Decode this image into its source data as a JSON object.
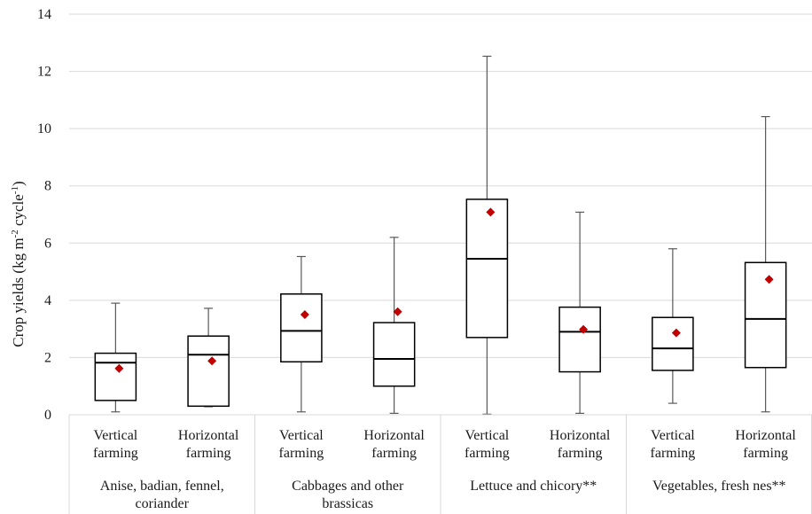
{
  "chart_data": {
    "type": "box",
    "ylabel": {
      "base": "Crop yields (kg m",
      "sup1": "-2",
      "mid": " cycle",
      "sup2": "-1",
      "end": ")"
    },
    "ylim": [
      0,
      14
    ],
    "yticks": [
      0,
      2,
      4,
      6,
      8,
      10,
      12,
      14
    ],
    "grid": true,
    "groups": [
      {
        "label": [
          "Anise, badian, fennel,",
          "coriander"
        ],
        "boxes": [
          {
            "label": [
              "Vertical",
              "farming"
            ],
            "min": 0.1,
            "q1": 0.5,
            "median": 1.82,
            "q3": 2.15,
            "max": 3.9,
            "mean": 1.62
          },
          {
            "label": [
              "Horizontal",
              "farming"
            ],
            "min": 0.28,
            "q1": 0.3,
            "median": 2.1,
            "q3": 2.75,
            "max": 3.72,
            "mean": 1.88
          }
        ]
      },
      {
        "label": [
          "Cabbages and other",
          "brassicas"
        ],
        "boxes": [
          {
            "label": [
              "Vertical",
              "farming"
            ],
            "min": 0.1,
            "q1": 1.85,
            "median": 2.93,
            "q3": 4.22,
            "max": 5.53,
            "mean": 3.5
          },
          {
            "label": [
              "Horizontal",
              "farming"
            ],
            "min": 0.05,
            "q1": 1.0,
            "median": 1.95,
            "q3": 3.22,
            "max": 6.2,
            "mean": 3.6
          }
        ]
      },
      {
        "label": [
          "Lettuce and chicory**"
        ],
        "boxes": [
          {
            "label": [
              "Vertical",
              "farming"
            ],
            "min": 0.02,
            "q1": 2.7,
            "median": 5.45,
            "q3": 7.53,
            "max": 12.53,
            "mean": 7.08
          },
          {
            "label": [
              "Horizontal",
              "farming"
            ],
            "min": 0.05,
            "q1": 1.5,
            "median": 2.9,
            "q3": 3.76,
            "max": 7.08,
            "mean": 2.98
          }
        ]
      },
      {
        "label": [
          "Vegetables, fresh nes**"
        ],
        "boxes": [
          {
            "label": [
              "Vertical",
              "farming"
            ],
            "min": 0.4,
            "q1": 1.55,
            "median": 2.32,
            "q3": 3.4,
            "max": 5.8,
            "mean": 2.86
          },
          {
            "label": [
              "Horizontal",
              "farming"
            ],
            "min": 0.1,
            "q1": 1.65,
            "median": 3.35,
            "q3": 5.32,
            "max": 10.42,
            "mean": 4.73
          }
        ]
      }
    ],
    "colors": {
      "box_stroke": "#000000",
      "whisker": "#595959",
      "grid": "#d9d9d9",
      "mean_marker": "#c00000"
    }
  }
}
